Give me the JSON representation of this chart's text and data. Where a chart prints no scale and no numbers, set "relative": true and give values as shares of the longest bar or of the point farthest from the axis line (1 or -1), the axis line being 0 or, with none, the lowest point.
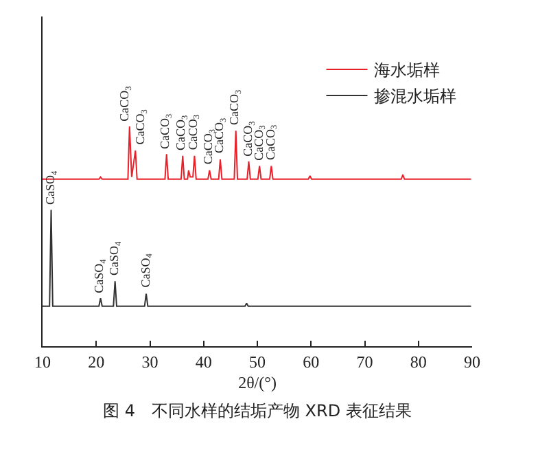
{
  "chart_data": {
    "type": "line",
    "relative": true,
    "xlabel": "2θ/(°)",
    "xlim": [
      10,
      90
    ],
    "xticks": [
      10,
      20,
      30,
      40,
      50,
      60,
      70,
      80,
      90
    ],
    "grid": false,
    "legend": "top right",
    "marker": "none",
    "line_style": "solid",
    "series": [
      {
        "name": "海水垢样",
        "color": "#e8202a",
        "x": [
          10,
          20.5,
          20.8,
          21.1,
          25.9,
          26.2,
          26.6,
          27.3,
          27.6,
          32.8,
          33.1,
          33.4,
          35.8,
          36.1,
          36.4,
          37.0,
          37.2,
          37.5,
          38.0,
          38.3,
          38.6,
          40.8,
          41.1,
          41.4,
          42.8,
          43.1,
          43.4,
          45.7,
          46.0,
          46.3,
          48.1,
          48.4,
          48.7,
          50.1,
          50.4,
          50.7,
          52.3,
          52.6,
          52.9,
          59.5,
          59.8,
          60.1,
          76.8,
          77.1,
          77.4,
          89.8
        ],
        "values": [
          0.76,
          0.76,
          0.77,
          0.76,
          0.76,
          1.0,
          0.77,
          0.89,
          0.76,
          0.76,
          0.874,
          0.76,
          0.76,
          0.866,
          0.76,
          0.76,
          0.8,
          0.77,
          0.77,
          0.866,
          0.76,
          0.76,
          0.8,
          0.76,
          0.76,
          0.85,
          0.76,
          0.76,
          0.98,
          0.76,
          0.76,
          0.84,
          0.76,
          0.76,
          0.82,
          0.76,
          0.76,
          0.82,
          0.76,
          0.76,
          0.775,
          0.76,
          0.76,
          0.78,
          0.76,
          0.76
        ]
      },
      {
        "name": "掺混水垢样",
        "color": "#333333",
        "x": [
          10,
          11.3,
          11.6,
          11.9,
          20.5,
          20.8,
          21.1,
          23.2,
          23.5,
          23.8,
          29.0,
          29.3,
          29.6,
          47.7,
          48.0,
          48.3,
          89.8
        ],
        "values": [
          0.182,
          0.182,
          0.62,
          0.182,
          0.182,
          0.218,
          0.182,
          0.182,
          0.296,
          0.182,
          0.182,
          0.239,
          0.182,
          0.182,
          0.195,
          0.182,
          0.182
        ]
      }
    ],
    "annotations": [
      {
        "text": "CaCO$_{3}$",
        "x": 26.2,
        "y": 1.0
      },
      {
        "text": "CaCO$_{3}$",
        "x": 27.3,
        "y": 0.89
      },
      {
        "text": "CaCO$_{3}$",
        "x": 33.1,
        "y": 0.874
      },
      {
        "text": "CaCO$_{3}$",
        "x": 36.1,
        "y": 0.866
      },
      {
        "text": "CaCO$_{3}$",
        "x": 38.3,
        "y": 0.866
      },
      {
        "text": "CaCO$_{3}$",
        "x": 41.1,
        "y": 0.8
      },
      {
        "text": "CaCO$_{3}$",
        "x": 43.1,
        "y": 0.85
      },
      {
        "text": "CaCO$_{3}$",
        "x": 46.0,
        "y": 0.98
      },
      {
        "text": "CaCO$_{3}$",
        "x": 48.4,
        "y": 0.84
      },
      {
        "text": "CaCO$_{3}$",
        "x": 50.4,
        "y": 0.82
      },
      {
        "text": "CaCO$_{3}$",
        "x": 52.6,
        "y": 0.82
      },
      {
        "text": "CaSO$_{4}$",
        "x": 11.6,
        "y": 0.62
      },
      {
        "text": "CaSO$_{4}$",
        "x": 20.8,
        "y": 0.218
      },
      {
        "text": "CaSO$_{4}$",
        "x": 23.5,
        "y": 0.296
      },
      {
        "text": "CaSO$_{4}$",
        "x": 29.3,
        "y": 0.239
      },
      "图 4　不同水样的结垢产物 XRD 表征结果"
    ]
  }
}
